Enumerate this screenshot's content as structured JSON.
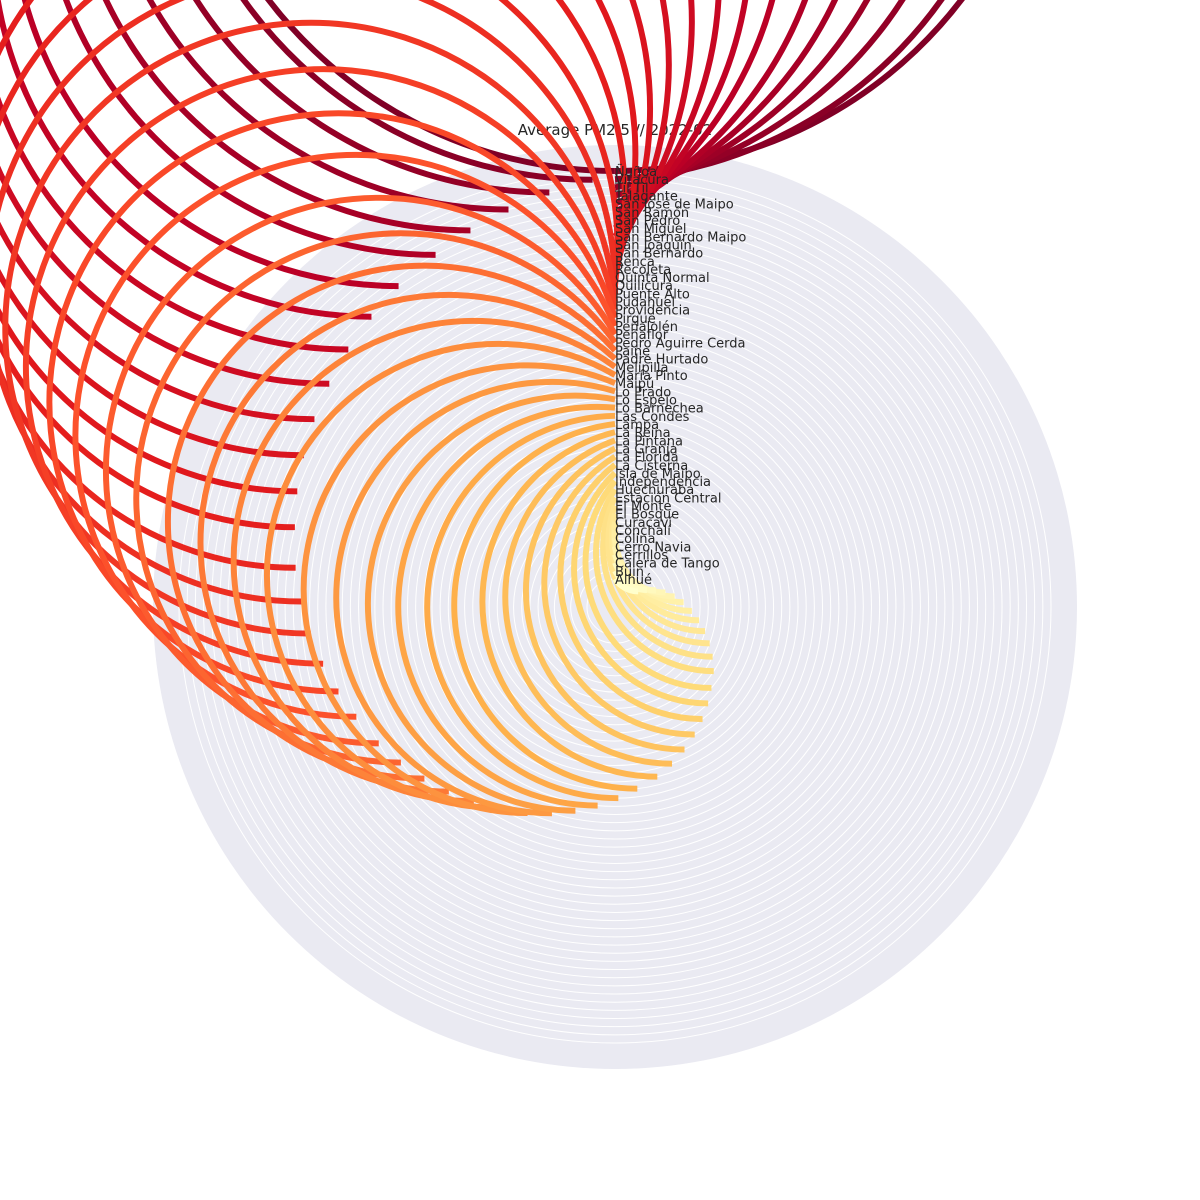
{
  "chart_data": {
    "type": "radial-bar",
    "title": "Average PM2.5 // 2022-02",
    "value_scale_max": 360,
    "background_color": "#eaeaf2",
    "bar_colors": {
      "ramp": [
        "#ffffcc",
        "#ffeda0",
        "#fed976",
        "#feb24c",
        "#fd8d3c",
        "#fc4e2a",
        "#e31a1c",
        "#bd0026",
        "#800026"
      ]
    },
    "series": [
      {
        "name": "Ñuñoa",
        "value": 360
      },
      {
        "name": "Vitacura",
        "value": 357
      },
      {
        "name": "Til Til",
        "value": 351
      },
      {
        "name": "Talagante",
        "value": 345
      },
      {
        "name": "San José de Maipo",
        "value": 339
      },
      {
        "name": "San Ramón",
        "value": 333
      },
      {
        "name": "San Pedro",
        "value": 326
      },
      {
        "name": "San Miguel",
        "value": 320
      },
      {
        "name": "San Bernardo Maipo",
        "value": 314
      },
      {
        "name": "San Joaquín",
        "value": 308
      },
      {
        "name": "San Bernardo",
        "value": 302
      },
      {
        "name": "Renca",
        "value": 296
      },
      {
        "name": "Recoleta",
        "value": 290
      },
      {
        "name": "Quinta Normal",
        "value": 284
      },
      {
        "name": "Quilicura",
        "value": 277
      },
      {
        "name": "Puente Alto",
        "value": 271
      },
      {
        "name": "Pudahuel",
        "value": 265
      },
      {
        "name": "Providencia",
        "value": 259
      },
      {
        "name": "Pirque",
        "value": 253
      },
      {
        "name": "Peñalolén",
        "value": 247
      },
      {
        "name": "Peñaflor",
        "value": 240
      },
      {
        "name": "Pedro Aguirre Cerda",
        "value": 234
      },
      {
        "name": "Paine",
        "value": 228
      },
      {
        "name": "Padre Hurtado",
        "value": 222
      },
      {
        "name": "Melipilla",
        "value": 216
      },
      {
        "name": "María Pinto",
        "value": 210
      },
      {
        "name": "Maipú",
        "value": 203
      },
      {
        "name": "Lo Prado",
        "value": 197
      },
      {
        "name": "Lo Espejo",
        "value": 191
      },
      {
        "name": "Lo Barnechea",
        "value": 185
      },
      {
        "name": "Las Condes",
        "value": 179
      },
      {
        "name": "Lampa",
        "value": 173
      },
      {
        "name": "La Reina",
        "value": 166
      },
      {
        "name": "La Pintana",
        "value": 160
      },
      {
        "name": "La Granja",
        "value": 154
      },
      {
        "name": "La Florida",
        "value": 148
      },
      {
        "name": "La Cisterna",
        "value": 142
      },
      {
        "name": "Isla de Maipo",
        "value": 136
      },
      {
        "name": "Independencia",
        "value": 130
      },
      {
        "name": "Huechuraba",
        "value": 123
      },
      {
        "name": "Estación Central",
        "value": 117
      },
      {
        "name": "El Monte",
        "value": 111
      },
      {
        "name": "El Bosque",
        "value": 105
      },
      {
        "name": "Curacaví",
        "value": 99
      },
      {
        "name": "Conchalí",
        "value": 93
      },
      {
        "name": "Colina",
        "value": 86
      },
      {
        "name": "Cerro Navia",
        "value": 80
      },
      {
        "name": "Cerrillos",
        "value": 74
      },
      {
        "name": "Calera de Tango",
        "value": 68
      },
      {
        "name": "Buin",
        "value": 62
      },
      {
        "name": "Alhué",
        "value": 56
      }
    ]
  }
}
